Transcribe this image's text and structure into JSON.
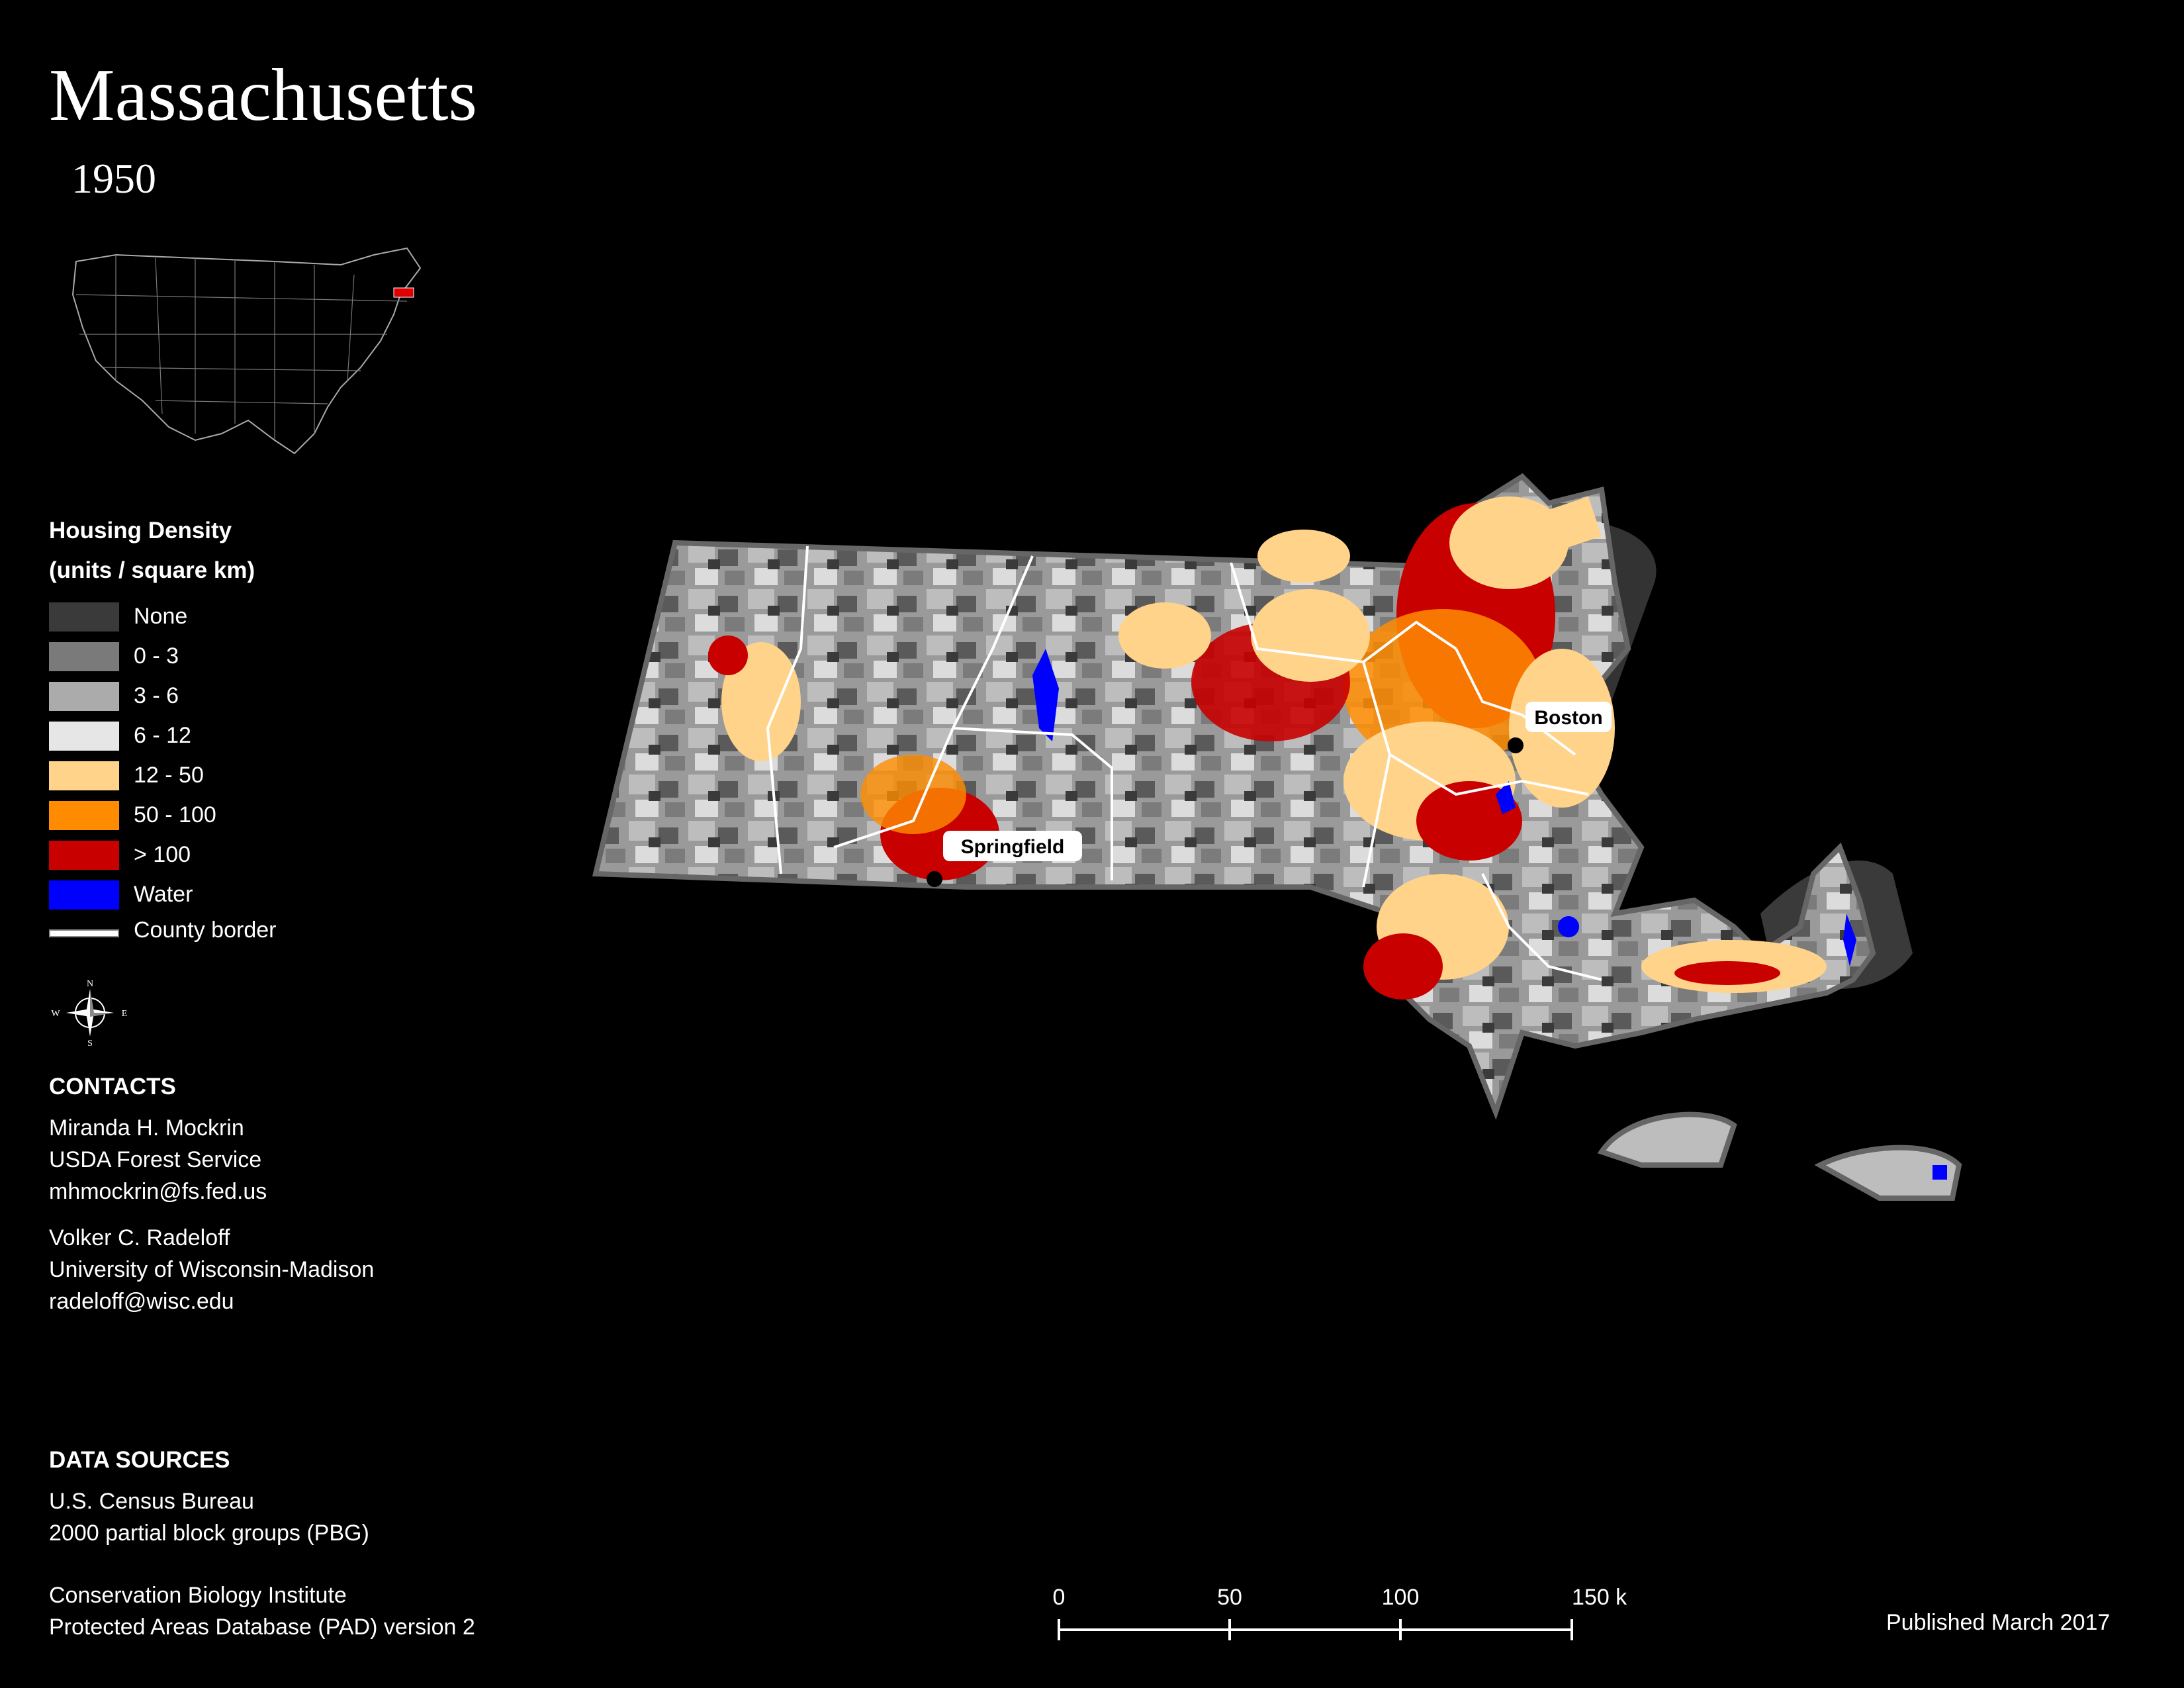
{
  "title": "Massachusetts",
  "year": "1950",
  "legend": {
    "title": "Housing Density",
    "units": "(units / square km)",
    "items": [
      {
        "label": "None",
        "color": "#3a3a3a"
      },
      {
        "label": "0 - 3",
        "color": "#7a7a7a"
      },
      {
        "label": "3 - 6",
        "color": "#ababab"
      },
      {
        "label": "6 - 12",
        "color": "#e6e6e6"
      },
      {
        "label": "12 - 50",
        "color": "#ffd38a"
      },
      {
        "label": "50 - 100",
        "color": "#ff8c00"
      },
      {
        "label": "> 100",
        "color": "#c80000"
      },
      {
        "label": "Water",
        "color": "#0000ff"
      }
    ],
    "border_label": "County border"
  },
  "compass": {
    "n": "N",
    "s": "S",
    "e": "E",
    "w": "W"
  },
  "contacts": {
    "heading": "CONTACTS",
    "people": [
      {
        "name": "Miranda H. Mockrin",
        "org": "USDA Forest Service",
        "email": "mhmockrin@fs.fed.us"
      },
      {
        "name": "Volker C. Radeloff",
        "org": "University of Wisconsin-Madison",
        "email": "radeloff@wisc.edu"
      }
    ]
  },
  "data_sources": {
    "heading": "DATA SOURCES",
    "sources": [
      {
        "line1": "U.S. Census Bureau",
        "line2": "2000 partial block groups (PBG)"
      },
      {
        "line1": "Conservation Biology Institute",
        "line2": "Protected Areas Database (PAD) version 2"
      }
    ]
  },
  "scale_bar": {
    "ticks": [
      "0",
      "50",
      "100",
      "150 km"
    ]
  },
  "cities": [
    "Boston",
    "Springfield"
  ],
  "published": "Published March 2017"
}
